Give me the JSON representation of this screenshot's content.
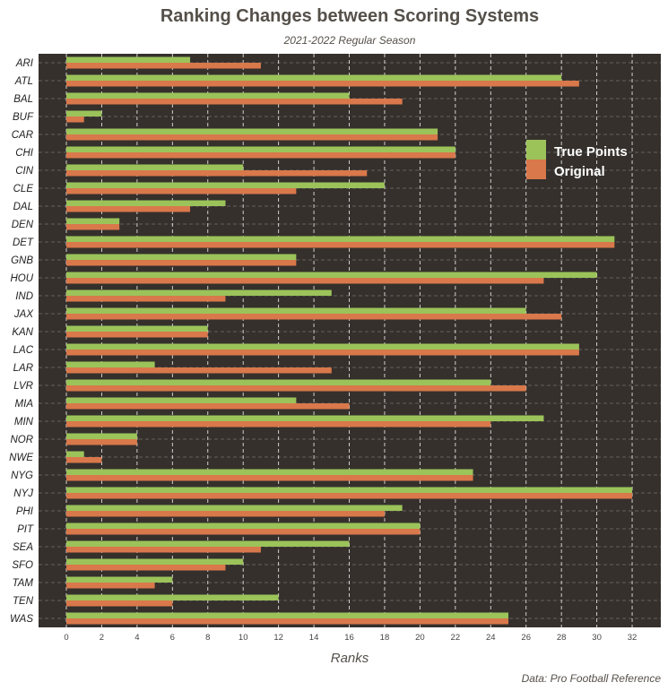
{
  "chart_data": {
    "type": "bar",
    "orientation": "horizontal",
    "title": "Ranking Changes between Scoring Systems",
    "subtitle": "2021-2022 Regular Season",
    "xlabel": "Ranks",
    "caption": "Data: Pro Football Reference",
    "xlim": [
      0,
      32
    ],
    "xticks": [
      0,
      2,
      4,
      6,
      8,
      10,
      12,
      14,
      16,
      18,
      20,
      22,
      24,
      26,
      28,
      30,
      32
    ],
    "categories": [
      "ARI",
      "ATL",
      "BAL",
      "BUF",
      "CAR",
      "CHI",
      "CIN",
      "CLE",
      "DAL",
      "DEN",
      "DET",
      "GNB",
      "HOU",
      "IND",
      "JAX",
      "KAN",
      "LAC",
      "LAR",
      "LVR",
      "MIA",
      "MIN",
      "NOR",
      "NWE",
      "NYG",
      "NYJ",
      "PHI",
      "PIT",
      "SEA",
      "SFO",
      "TAM",
      "TEN",
      "WAS"
    ],
    "series": [
      {
        "name": "True Points",
        "color": "#9bc35a",
        "values": [
          7,
          28,
          16,
          2,
          21,
          22,
          10,
          18,
          9,
          3,
          31,
          13,
          30,
          15,
          26,
          8,
          29,
          5,
          24,
          13,
          27,
          4,
          1,
          23,
          32,
          19,
          20,
          16,
          10,
          6,
          12,
          25
        ]
      },
      {
        "name": "Original",
        "color": "#d9784b",
        "values": [
          11,
          29,
          19,
          1,
          21,
          22,
          17,
          13,
          7,
          3,
          31,
          13,
          27,
          9,
          28,
          8,
          29,
          15,
          26,
          16,
          24,
          4,
          2,
          23,
          32,
          18,
          20,
          11,
          9,
          5,
          6,
          25
        ]
      }
    ],
    "legend": {
      "position": "top-right",
      "entries": [
        "True Points",
        "Original"
      ]
    },
    "colors": {
      "panel_background": "#35302c",
      "grid": "#ffffff",
      "text": "#555049"
    }
  }
}
